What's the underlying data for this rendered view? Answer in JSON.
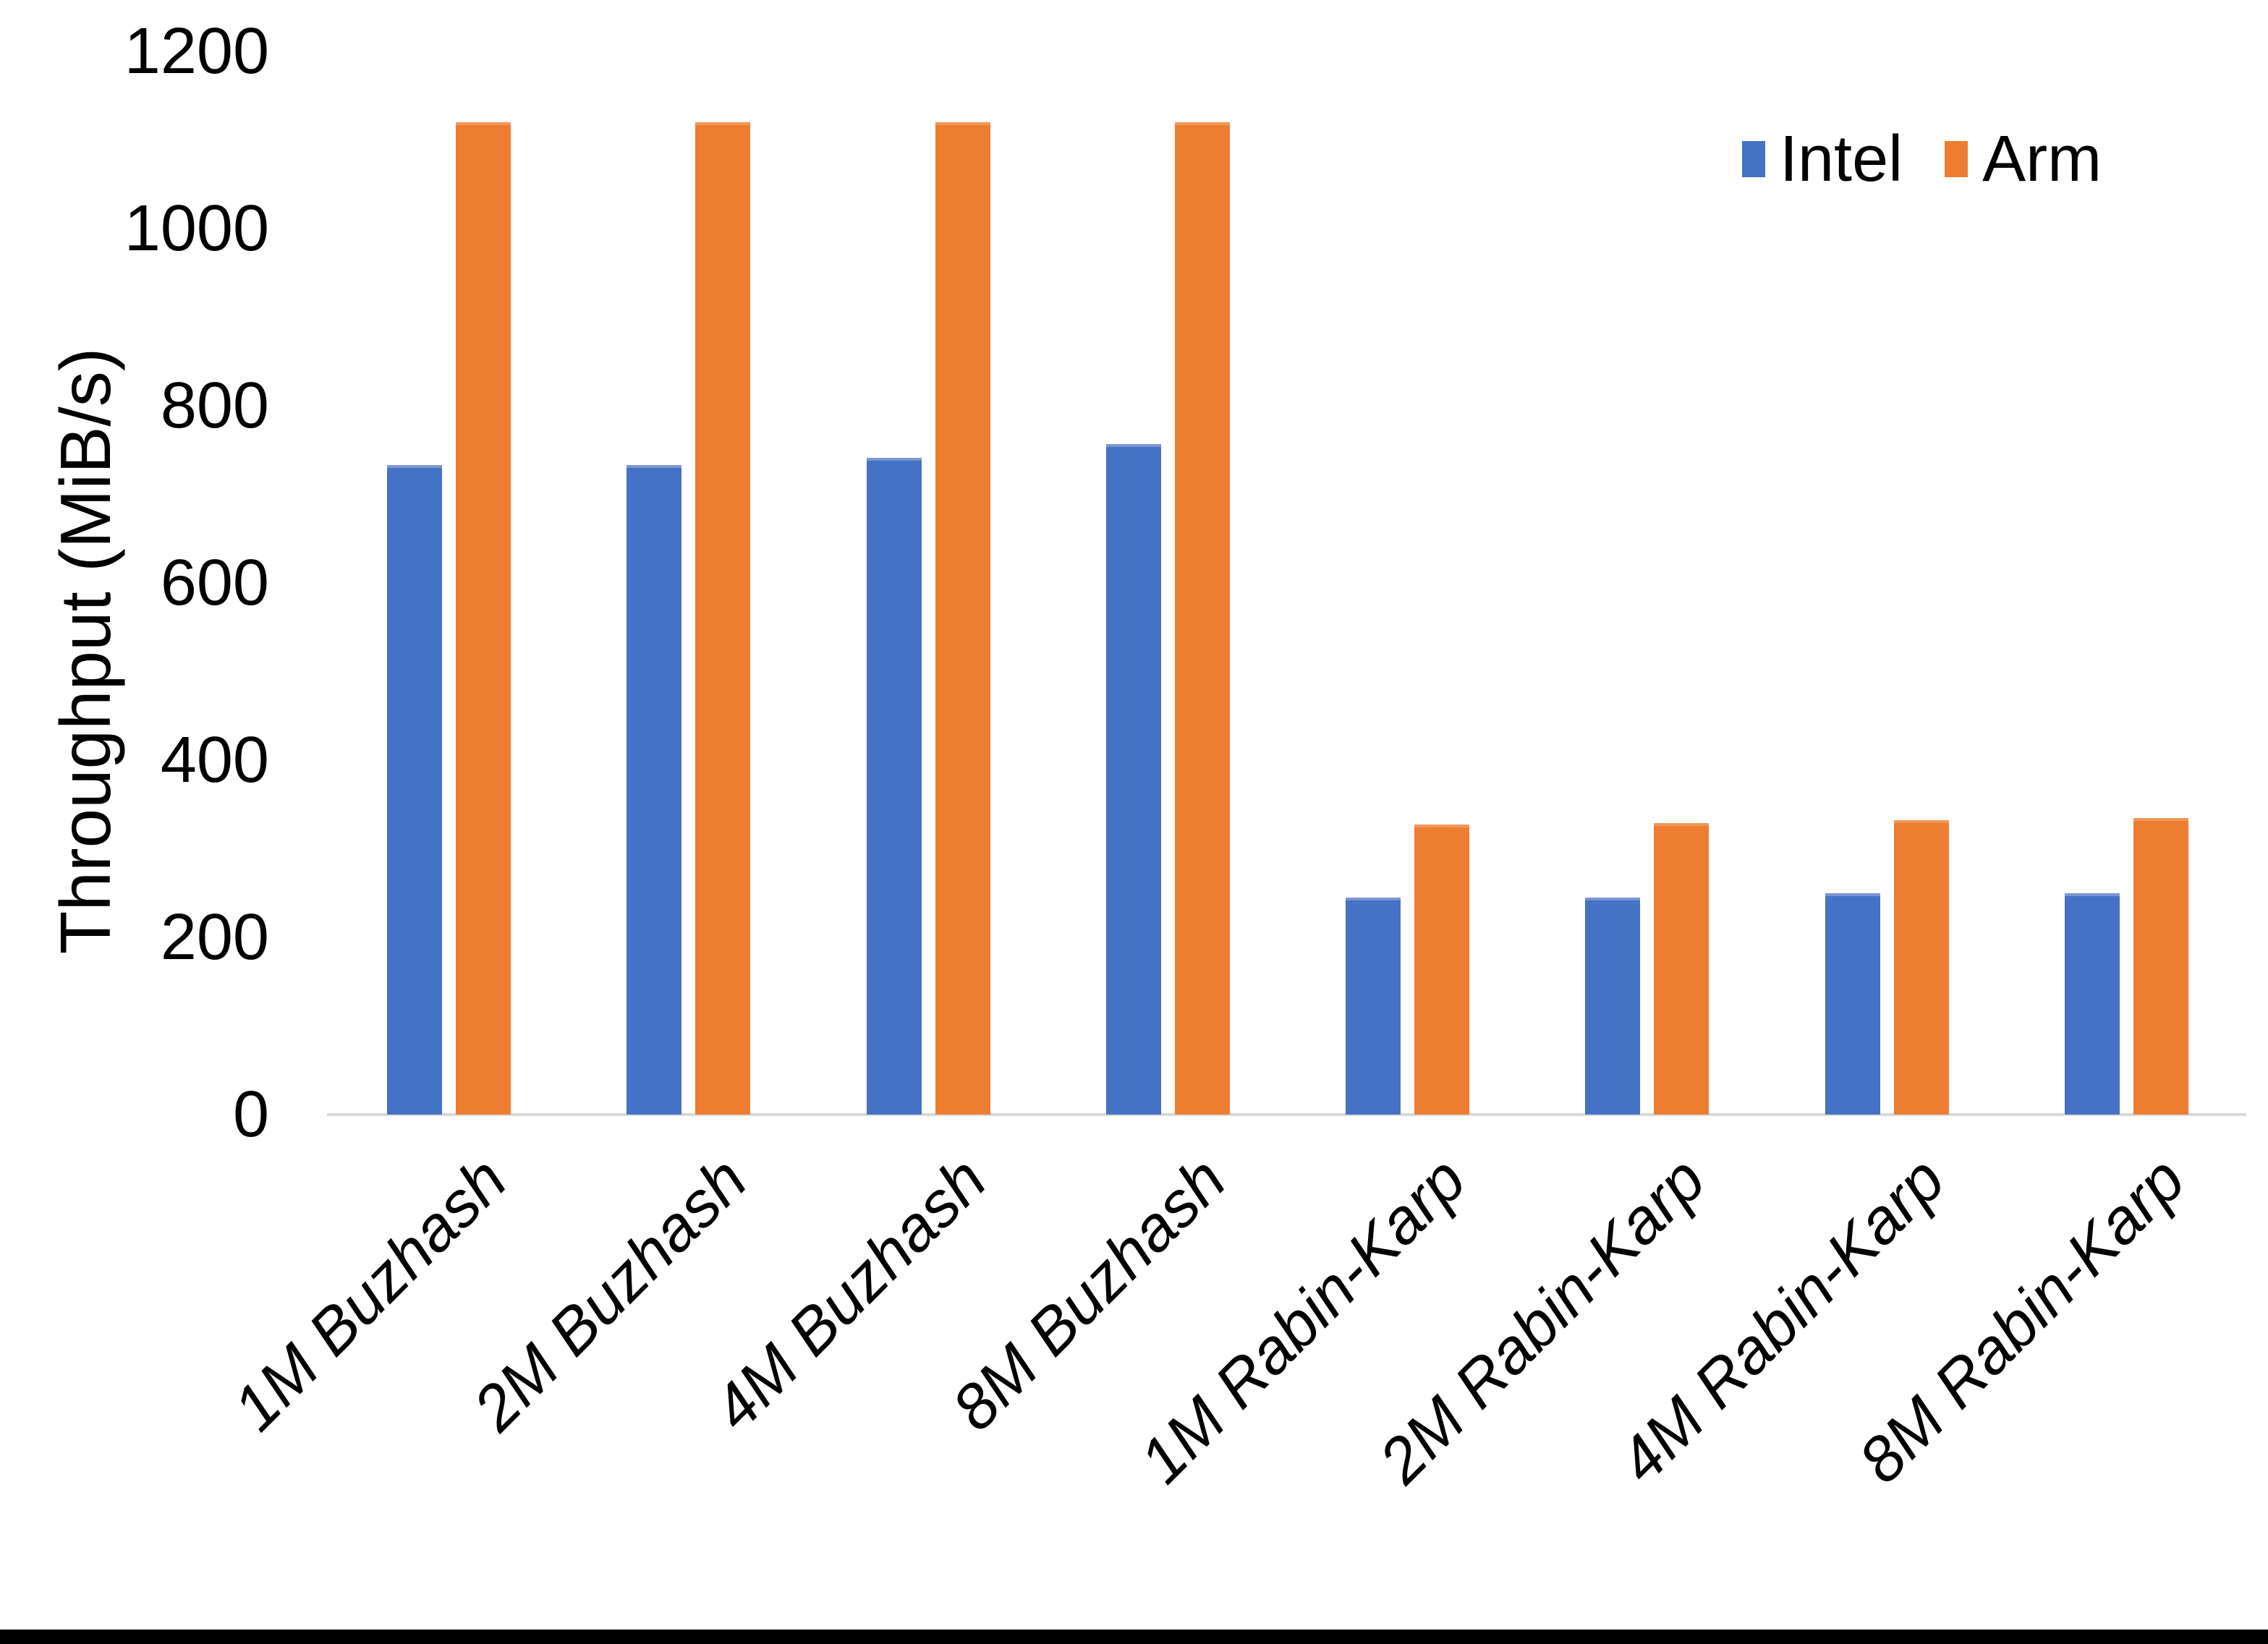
{
  "chart_data": {
    "type": "bar",
    "title": "",
    "xlabel": "",
    "ylabel": "Throughput (MiB/s)",
    "ylim": [
      0,
      1200
    ],
    "yticks": [
      0,
      200,
      400,
      600,
      800,
      1000,
      1200
    ],
    "grid": false,
    "legend_position": "top-right",
    "categories": [
      "1M Buzhash",
      "2M Buzhash",
      "4M Buzhash",
      "8M Buzhash",
      "1M Rabin-Karp",
      "2M Rabin-Karp",
      "4M Rabin-Karp",
      "8M Rabin-Karp"
    ],
    "series": [
      {
        "name": "Intel",
        "color": "#4472C4",
        "edge_color": "#7b96d4",
        "values": [
          733,
          733,
          741,
          757,
          245,
          245,
          250,
          250
        ]
      },
      {
        "name": "Arm",
        "color": "#ED7D31",
        "edge_color": "#f19858",
        "values": [
          1120,
          1120,
          1120,
          1120,
          327,
          329,
          332,
          335
        ]
      }
    ]
  },
  "colors": {
    "background": "#ffffff",
    "axis_line": "#d9d9d9",
    "text": "#000000",
    "bottom_edge_bar": "#000000"
  }
}
